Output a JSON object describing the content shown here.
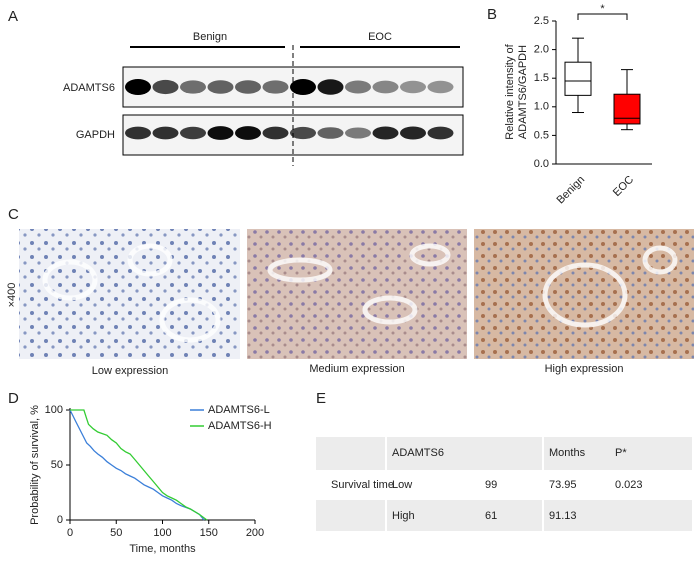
{
  "panel_labels": [
    "A",
    "B",
    "C",
    "D",
    "E"
  ],
  "blot": {
    "groups": [
      "Benign",
      "EOC"
    ],
    "rows": [
      "ADAMTS6",
      "GAPDH"
    ]
  },
  "histology": {
    "magnification": "×400",
    "captions": [
      "Low expression",
      "Medium expression",
      "High expression"
    ]
  },
  "chart_data": [
    {
      "type": "box",
      "ylabel": [
        "Relative intensity of",
        "ADAMTS6/GAPDH"
      ],
      "categories": [
        "Benign",
        "EOC"
      ],
      "boxes": [
        {
          "min": 0.9,
          "q1": 1.2,
          "median": 1.45,
          "q3": 1.78,
          "max": 2.2,
          "color": "#ffffff"
        },
        {
          "min": 0.6,
          "q1": 0.7,
          "median": 0.8,
          "q3": 1.22,
          "max": 1.65,
          "color": "#ff0000"
        }
      ],
      "annotation": "*",
      "ylim": [
        0,
        2.5
      ],
      "yticks": [
        {
          "value": 0,
          "label": "0.0"
        },
        {
          "value": 0.5,
          "label": "0.5"
        },
        {
          "value": 1,
          "label": "1.0"
        },
        {
          "value": 1.5,
          "label": "1.5"
        },
        {
          "value": 2,
          "label": "2.0"
        },
        {
          "value": 2.5,
          "label": "2.5"
        }
      ]
    },
    {
      "type": "line",
      "xlabel": "Time, months",
      "ylabel": "Probability of survival, %",
      "series": [
        {
          "name": "ADAMTS6-L",
          "color": "#3b7fd9",
          "x": [
            0,
            3,
            6,
            9,
            12,
            15,
            18,
            22,
            26,
            30,
            35,
            40,
            45,
            50,
            55,
            60,
            65,
            70,
            75,
            80,
            85,
            90,
            95,
            100,
            105,
            110,
            115,
            120,
            130,
            140,
            145
          ],
          "values": [
            100,
            95,
            90,
            85,
            80,
            75,
            70,
            67,
            63,
            60,
            57,
            53,
            50,
            47,
            45,
            42,
            40,
            38,
            35,
            32,
            30,
            28,
            25,
            22,
            20,
            18,
            15,
            13,
            10,
            5,
            0
          ]
        },
        {
          "name": "ADAMTS6-H",
          "color": "#33cc33",
          "x": [
            0,
            15,
            18,
            20,
            25,
            30,
            40,
            45,
            50,
            55,
            60,
            65,
            70,
            75,
            80,
            85,
            90,
            95,
            100,
            105,
            110,
            115,
            120,
            125,
            130,
            140,
            148
          ],
          "values": [
            100,
            100,
            92,
            87,
            83,
            80,
            77,
            73,
            70,
            65,
            62,
            60,
            55,
            50,
            45,
            40,
            35,
            30,
            25,
            22,
            20,
            18,
            15,
            12,
            10,
            5,
            0
          ]
        }
      ],
      "xlim": [
        0,
        200
      ],
      "xticks": [
        0,
        50,
        100,
        150,
        200
      ],
      "ylim": [
        0,
        100
      ],
      "yticks": [
        0,
        50,
        100
      ]
    }
  ],
  "table": {
    "header": {
      "group": "ADAMTS6",
      "months": "Months",
      "p": "P*"
    },
    "rows": [
      {
        "label": "Survival time",
        "group": "Low",
        "n": 99,
        "months": 73.95,
        "p": 0.023
      },
      {
        "group": "High",
        "n": 61,
        "months": 91.13
      }
    ]
  }
}
